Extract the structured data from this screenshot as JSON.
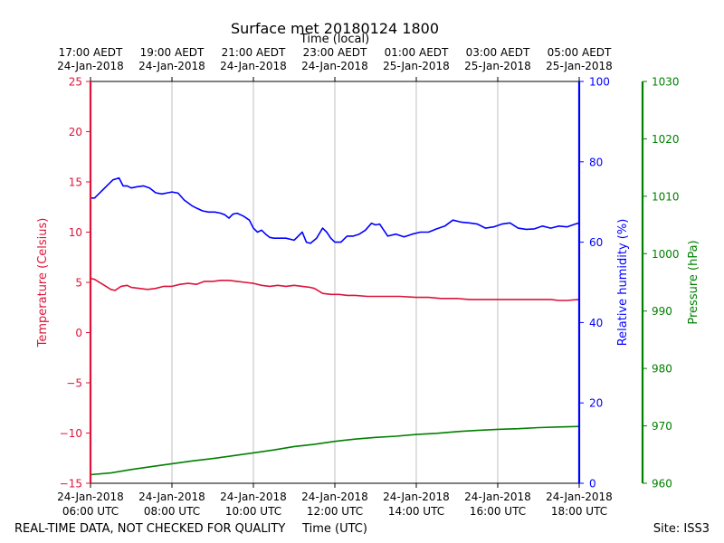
{
  "chart_data": {
    "type": "line",
    "title": "Surface met 20180124 1800",
    "top_xlabel": "Time (local)",
    "xlabel": "Time (UTC)",
    "x_range_utc_hours": [
      6,
      18
    ],
    "local_ticks": [
      {
        "time": "17:00 AEDT",
        "date": "24-Jan-2018"
      },
      {
        "time": "19:00 AEDT",
        "date": "24-Jan-2018"
      },
      {
        "time": "21:00 AEDT",
        "date": "24-Jan-2018"
      },
      {
        "time": "23:00 AEDT",
        "date": "24-Jan-2018"
      },
      {
        "time": "01:00 AEDT",
        "date": "25-Jan-2018"
      },
      {
        "time": "03:00 AEDT",
        "date": "25-Jan-2018"
      },
      {
        "time": "05:00 AEDT",
        "date": "25-Jan-2018"
      }
    ],
    "utc_ticks": [
      {
        "date": "24-Jan-2018",
        "time": "06:00 UTC"
      },
      {
        "date": "24-Jan-2018",
        "time": "08:00 UTC"
      },
      {
        "date": "24-Jan-2018",
        "time": "10:00 UTC"
      },
      {
        "date": "24-Jan-2018",
        "time": "12:00 UTC"
      },
      {
        "date": "24-Jan-2018",
        "time": "14:00 UTC"
      },
      {
        "date": "24-Jan-2018",
        "time": "16:00 UTC"
      },
      {
        "date": "24-Jan-2018",
        "time": "18:00 UTC"
      }
    ],
    "axes": {
      "temperature": {
        "label": "Temperature (Celsius)",
        "ylim": [
          -15,
          25
        ],
        "ticks": [
          25,
          20,
          15,
          10,
          5,
          0,
          -5,
          -10,
          -15
        ],
        "tick_labels": [
          "25",
          "20",
          "15",
          "10",
          "5",
          "0",
          "−5",
          "−10",
          "−15"
        ],
        "color": "#dc143c"
      },
      "humidity": {
        "label": "Relative humidity (%)",
        "ylim": [
          0,
          100
        ],
        "ticks": [
          100,
          80,
          60,
          40,
          20,
          0
        ],
        "tick_labels": [
          "100",
          "80",
          "60",
          "40",
          "20",
          "0"
        ],
        "color": "#0000ff"
      },
      "pressure": {
        "label": "Pressure (hPa)",
        "ylim": [
          960,
          1030
        ],
        "ticks": [
          1030,
          1020,
          1010,
          1000,
          990,
          980,
          970,
          960
        ],
        "tick_labels": [
          "1030",
          "1020",
          "1010",
          "1000",
          "990",
          "980",
          "970",
          "960"
        ],
        "color": "#008000"
      }
    },
    "series": [
      {
        "name": "Temperature",
        "axis": "temperature",
        "color": "#dc143c",
        "points": [
          [
            6.0,
            5.4
          ],
          [
            6.1,
            5.3
          ],
          [
            6.3,
            4.8
          ],
          [
            6.5,
            4.3
          ],
          [
            6.6,
            4.2
          ],
          [
            6.75,
            4.6
          ],
          [
            6.9,
            4.7
          ],
          [
            7.0,
            4.5
          ],
          [
            7.2,
            4.4
          ],
          [
            7.4,
            4.3
          ],
          [
            7.6,
            4.4
          ],
          [
            7.8,
            4.6
          ],
          [
            8.0,
            4.6
          ],
          [
            8.2,
            4.8
          ],
          [
            8.4,
            4.9
          ],
          [
            8.6,
            4.8
          ],
          [
            8.8,
            5.1
          ],
          [
            9.0,
            5.1
          ],
          [
            9.2,
            5.2
          ],
          [
            9.4,
            5.2
          ],
          [
            9.6,
            5.1
          ],
          [
            9.8,
            5.0
          ],
          [
            10.0,
            4.9
          ],
          [
            10.2,
            4.7
          ],
          [
            10.4,
            4.6
          ],
          [
            10.6,
            4.7
          ],
          [
            10.8,
            4.6
          ],
          [
            11.0,
            4.7
          ],
          [
            11.2,
            4.6
          ],
          [
            11.4,
            4.5
          ],
          [
            11.5,
            4.4
          ],
          [
            11.7,
            3.9
          ],
          [
            11.9,
            3.8
          ],
          [
            12.1,
            3.8
          ],
          [
            12.3,
            3.7
          ],
          [
            12.5,
            3.7
          ],
          [
            12.8,
            3.6
          ],
          [
            13.0,
            3.6
          ],
          [
            13.3,
            3.6
          ],
          [
            13.6,
            3.6
          ],
          [
            14.0,
            3.5
          ],
          [
            14.3,
            3.5
          ],
          [
            14.6,
            3.4
          ],
          [
            14.8,
            3.4
          ],
          [
            15.0,
            3.4
          ],
          [
            15.3,
            3.3
          ],
          [
            15.6,
            3.3
          ],
          [
            16.0,
            3.3
          ],
          [
            16.3,
            3.3
          ],
          [
            16.6,
            3.3
          ],
          [
            16.8,
            3.3
          ],
          [
            17.0,
            3.3
          ],
          [
            17.3,
            3.3
          ],
          [
            17.5,
            3.2
          ],
          [
            17.7,
            3.2
          ],
          [
            18.0,
            3.3
          ]
        ]
      },
      {
        "name": "Relative humidity",
        "axis": "humidity",
        "color": "#0000ff",
        "points": [
          [
            6.0,
            71
          ],
          [
            6.1,
            71
          ],
          [
            6.25,
            72.5
          ],
          [
            6.4,
            74
          ],
          [
            6.55,
            75.5
          ],
          [
            6.7,
            76
          ],
          [
            6.8,
            74
          ],
          [
            6.9,
            74
          ],
          [
            7.0,
            73.5
          ],
          [
            7.15,
            73.8
          ],
          [
            7.3,
            74
          ],
          [
            7.45,
            73.5
          ],
          [
            7.6,
            72.3
          ],
          [
            7.75,
            72
          ],
          [
            7.9,
            72.3
          ],
          [
            8.0,
            72.5
          ],
          [
            8.15,
            72.2
          ],
          [
            8.3,
            70.5
          ],
          [
            8.5,
            69
          ],
          [
            8.6,
            68.5
          ],
          [
            8.75,
            67.8
          ],
          [
            8.9,
            67.5
          ],
          [
            9.05,
            67.5
          ],
          [
            9.2,
            67.2
          ],
          [
            9.3,
            66.8
          ],
          [
            9.4,
            66
          ],
          [
            9.5,
            67
          ],
          [
            9.6,
            67.2
          ],
          [
            9.75,
            66.5
          ],
          [
            9.9,
            65.5
          ],
          [
            10.0,
            63.5
          ],
          [
            10.1,
            62.5
          ],
          [
            10.2,
            63
          ],
          [
            10.3,
            62
          ],
          [
            10.4,
            61.2
          ],
          [
            10.5,
            61
          ],
          [
            10.6,
            61
          ],
          [
            10.8,
            61
          ],
          [
            11.0,
            60.5
          ],
          [
            11.2,
            62.5
          ],
          [
            11.3,
            60
          ],
          [
            11.4,
            59.7
          ],
          [
            11.55,
            61
          ],
          [
            11.7,
            63.5
          ],
          [
            11.8,
            62.5
          ],
          [
            11.9,
            61
          ],
          [
            12.0,
            60
          ],
          [
            12.15,
            60
          ],
          [
            12.3,
            61.5
          ],
          [
            12.45,
            61.5
          ],
          [
            12.6,
            62
          ],
          [
            12.75,
            63
          ],
          [
            12.9,
            64.7
          ],
          [
            13.0,
            64.3
          ],
          [
            13.1,
            64.5
          ],
          [
            13.3,
            61.5
          ],
          [
            13.5,
            62
          ],
          [
            13.7,
            61.3
          ],
          [
            13.9,
            62
          ],
          [
            14.1,
            62.5
          ],
          [
            14.3,
            62.5
          ],
          [
            14.5,
            63.3
          ],
          [
            14.7,
            64
          ],
          [
            14.9,
            65.5
          ],
          [
            15.1,
            65
          ],
          [
            15.3,
            64.8
          ],
          [
            15.5,
            64.5
          ],
          [
            15.7,
            63.5
          ],
          [
            15.9,
            63.8
          ],
          [
            16.1,
            64.5
          ],
          [
            16.3,
            64.8
          ],
          [
            16.5,
            63.5
          ],
          [
            16.7,
            63.2
          ],
          [
            16.9,
            63.3
          ],
          [
            17.1,
            64
          ],
          [
            17.3,
            63.5
          ],
          [
            17.5,
            64
          ],
          [
            17.7,
            63.8
          ],
          [
            17.9,
            64.5
          ],
          [
            18.0,
            64.8
          ]
        ]
      },
      {
        "name": "Pressure",
        "axis": "pressure",
        "color": "#008000",
        "points": [
          [
            6.0,
            961.5
          ],
          [
            6.5,
            961.8
          ],
          [
            7.0,
            962.4
          ],
          [
            7.5,
            962.9
          ],
          [
            8.0,
            963.4
          ],
          [
            8.5,
            963.9
          ],
          [
            9.0,
            964.3
          ],
          [
            9.5,
            964.8
          ],
          [
            10.0,
            965.3
          ],
          [
            10.5,
            965.8
          ],
          [
            11.0,
            966.4
          ],
          [
            11.5,
            966.8
          ],
          [
            12.0,
            967.3
          ],
          [
            12.5,
            967.7
          ],
          [
            13.0,
            968.0
          ],
          [
            13.5,
            968.2
          ],
          [
            14.0,
            968.5
          ],
          [
            14.5,
            968.7
          ],
          [
            15.0,
            969.0
          ],
          [
            15.5,
            969.2
          ],
          [
            16.0,
            969.4
          ],
          [
            16.5,
            969.5
          ],
          [
            17.0,
            969.7
          ],
          [
            17.5,
            969.8
          ],
          [
            18.0,
            969.9
          ]
        ]
      }
    ],
    "grid": "vertical at UTC ticks"
  },
  "footer": {
    "left": "REAL-TIME DATA, NOT CHECKED FOR QUALITY",
    "right": "Site: ISS3"
  }
}
